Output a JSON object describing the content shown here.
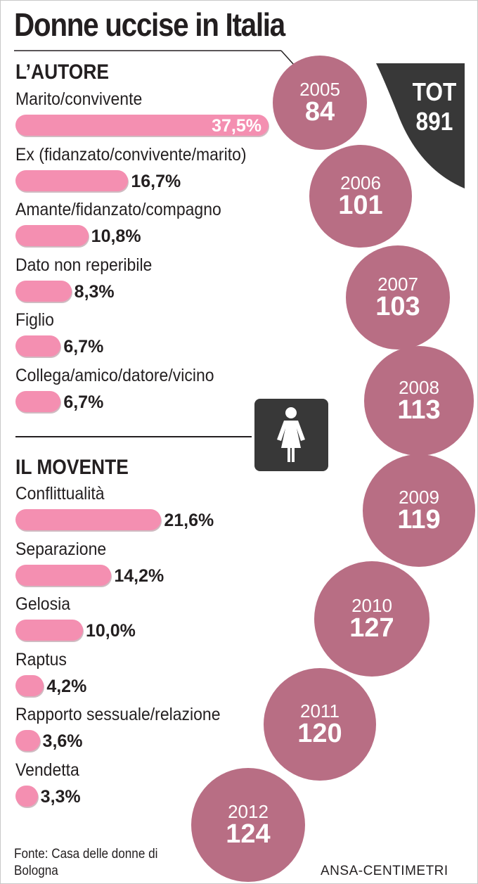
{
  "title": "Donne uccise in Italia",
  "chart_data": [
    {
      "type": "bar",
      "title": "L’AUTORE",
      "categories": [
        "Marito/convivente",
        "Ex (fidanzato/convivente/marito)",
        "Amante/fidanzato/compagno",
        "Dato non reperibile",
        "Figlio",
        "Collega/amico/datore/vicino"
      ],
      "values": [
        37.5,
        16.7,
        10.8,
        8.3,
        6.7,
        6.7
      ],
      "labels": [
        "37,5%",
        "16,7%",
        "10,8%",
        "8,3%",
        "6,7%",
        "6,7%"
      ],
      "color": "#f48fb1"
    },
    {
      "type": "bar",
      "title": "IL MOVENTE",
      "categories": [
        "Conflittualità",
        "Separazione",
        "Gelosia",
        "Raptus",
        "Rapporto sessuale/relazione",
        "Vendetta"
      ],
      "values": [
        21.6,
        14.2,
        10.0,
        4.2,
        3.6,
        3.3
      ],
      "labels": [
        "21,6%",
        "14,2%",
        "10,0%",
        "4,2%",
        "3,6%",
        "3,3%"
      ],
      "color": "#f48fb1"
    },
    {
      "type": "bubble",
      "title": "",
      "x": [
        "2005",
        "2006",
        "2007",
        "2008",
        "2009",
        "2010",
        "2011",
        "2012"
      ],
      "values": [
        84,
        101,
        103,
        113,
        119,
        127,
        120,
        124
      ],
      "color": "#b86e84"
    }
  ],
  "total": {
    "label": "TOT",
    "value": "891",
    "color": "#383838"
  },
  "icon": "woman-icon",
  "source": "Fonte: Casa delle donne di Bologna",
  "credit": "ANSA-CENTIMETRI"
}
